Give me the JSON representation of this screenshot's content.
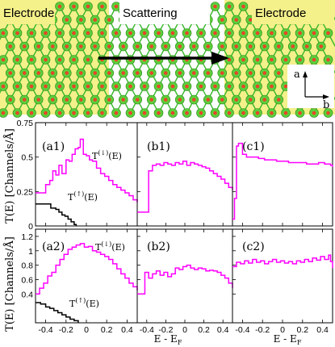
{
  "structure": {
    "left_label": "Electrode",
    "middle_label": "Scattering",
    "right_label": "Electrode",
    "axis_a": "a",
    "axis_b": "b",
    "colors": {
      "electrode_bg": "#f4f08a",
      "atom_large": "#5ccf3a",
      "atom_small": "#e8442a",
      "bond": "#3ab82f"
    }
  },
  "panels": {
    "ylabel_top": "T(E) [Channels/Å]",
    "ylabel_bottom": "T(E) [Channels/Å]",
    "xlabel": "E - E",
    "xlabel_sub": "F",
    "a1": "(a1)",
    "b1": "(b1)",
    "c1": "(c1)",
    "a2": "(a2)",
    "b2": "(b2)",
    "c2": "(c2)",
    "t_down": "T",
    "t_down_sup": "(↓)",
    "t_up": "T",
    "t_up_sup": "(↑)",
    "t_arg": "(E)"
  },
  "chart_data": [
    {
      "type": "line",
      "panel": "a1",
      "xlim": [
        -0.5,
        0.5
      ],
      "ylim": [
        0,
        0.75
      ],
      "yticks": [
        "0",
        "0.25",
        "0.5",
        "0.75"
      ],
      "series": [
        {
          "name": "T(↓)(E)",
          "color": "#ff00ff",
          "x": [
            -0.5,
            -0.44,
            -0.4,
            -0.36,
            -0.33,
            -0.3,
            -0.27,
            -0.24,
            -0.2,
            -0.17,
            -0.14,
            -0.11,
            -0.08,
            -0.06,
            -0.03,
            0.0,
            0.03,
            0.06,
            0.1,
            0.14,
            0.18,
            0.22,
            0.26,
            0.3,
            0.34,
            0.38,
            0.42,
            0.46,
            0.5
          ],
          "y": [
            0.24,
            0.24,
            0.3,
            0.33,
            0.4,
            0.37,
            0.44,
            0.38,
            0.48,
            0.47,
            0.52,
            0.56,
            0.57,
            0.63,
            0.52,
            0.51,
            0.48,
            0.47,
            0.42,
            0.38,
            0.36,
            0.33,
            0.3,
            0.28,
            0.26,
            0.24,
            0.22,
            0.19,
            0.17
          ]
        },
        {
          "name": "T(↑)(E)",
          "color": "#000000",
          "x": [
            -0.5,
            -0.4,
            -0.35,
            -0.3,
            -0.27,
            -0.24,
            -0.21,
            -0.18,
            -0.15,
            -0.12,
            -0.1
          ],
          "y": [
            0.16,
            0.16,
            0.13,
            0.12,
            0.1,
            0.08,
            0.07,
            0.05,
            0.03,
            0.01,
            0.0
          ]
        }
      ]
    },
    {
      "type": "line",
      "panel": "b1",
      "xlim": [
        -0.5,
        0.5
      ],
      "ylim": [
        0,
        0.75
      ],
      "series": [
        {
          "name": "",
          "color": "#ff00ff",
          "x": [
            -0.5,
            -0.4,
            -0.38,
            -0.34,
            -0.3,
            -0.26,
            -0.22,
            -0.18,
            -0.14,
            -0.1,
            -0.06,
            -0.02,
            0.02,
            0.06,
            0.1,
            0.14,
            0.18,
            0.22,
            0.26,
            0.3,
            0.34,
            0.38,
            0.42,
            0.46,
            0.5
          ],
          "y": [
            0.1,
            0.1,
            0.4,
            0.44,
            0.45,
            0.44,
            0.46,
            0.45,
            0.44,
            0.46,
            0.45,
            0.47,
            0.44,
            0.46,
            0.45,
            0.44,
            0.43,
            0.42,
            0.4,
            0.38,
            0.36,
            0.34,
            0.31,
            0.28,
            0.26
          ]
        }
      ]
    },
    {
      "type": "line",
      "panel": "c1",
      "xlim": [
        -0.5,
        0.5
      ],
      "ylim": [
        0,
        0.75
      ],
      "series": [
        {
          "name": "",
          "color": "#ff00ff",
          "x": [
            -0.5,
            -0.48,
            -0.46,
            -0.44,
            -0.4,
            -0.36,
            -0.3,
            -0.24,
            -0.18,
            -0.12,
            -0.06,
            0.0,
            0.06,
            0.12,
            0.18,
            0.24,
            0.3,
            0.36,
            0.42,
            0.48,
            0.5
          ],
          "y": [
            0.05,
            0.2,
            0.58,
            0.6,
            0.52,
            0.5,
            0.5,
            0.49,
            0.48,
            0.48,
            0.47,
            0.47,
            0.46,
            0.46,
            0.46,
            0.45,
            0.45,
            0.46,
            0.45,
            0.44,
            0.43
          ]
        }
      ]
    },
    {
      "type": "line",
      "panel": "a2",
      "xlim": [
        -0.5,
        0.5
      ],
      "ylim": [
        0,
        1.3
      ],
      "yticks": [
        "0.4",
        "0.6",
        "0.8",
        "1",
        "1.2"
      ],
      "series": [
        {
          "name": "T(↓)(E)",
          "color": "#ff00ff",
          "x": [
            -0.5,
            -0.46,
            -0.42,
            -0.38,
            -0.34,
            -0.3,
            -0.26,
            -0.22,
            -0.18,
            -0.14,
            -0.1,
            -0.06,
            -0.02,
            0.02,
            0.06,
            0.1,
            0.14,
            0.18,
            0.22,
            0.26,
            0.3,
            0.34,
            0.38,
            0.42,
            0.46,
            0.5
          ],
          "y": [
            0.4,
            0.48,
            0.55,
            0.65,
            0.7,
            0.8,
            0.88,
            0.95,
            1.02,
            1.05,
            1.08,
            1.1,
            1.05,
            1.06,
            1.0,
            0.98,
            0.95,
            0.92,
            0.88,
            0.82,
            0.75,
            0.68,
            0.62,
            0.55,
            0.5,
            0.45
          ]
        },
        {
          "name": "T(↑)(E)",
          "color": "#000000",
          "x": [
            -0.5,
            -0.45,
            -0.4,
            -0.36,
            -0.32,
            -0.28,
            -0.24,
            -0.2,
            -0.16,
            -0.12,
            -0.08
          ],
          "y": [
            0.28,
            0.26,
            0.22,
            0.2,
            0.17,
            0.14,
            0.11,
            0.08,
            0.05,
            0.03,
            0.0
          ]
        }
      ]
    },
    {
      "type": "line",
      "panel": "b2",
      "xlim": [
        -0.5,
        0.5
      ],
      "ylim": [
        0,
        1.3
      ],
      "series": [
        {
          "name": "",
          "color": "#ff00ff",
          "x": [
            -0.5,
            -0.44,
            -0.42,
            -0.38,
            -0.34,
            -0.3,
            -0.26,
            -0.22,
            -0.18,
            -0.14,
            -0.1,
            -0.06,
            -0.02,
            0.02,
            0.06,
            0.1,
            0.14,
            0.18,
            0.22,
            0.26,
            0.3,
            0.34,
            0.38,
            0.42,
            0.46,
            0.5
          ],
          "y": [
            0.4,
            0.4,
            0.7,
            0.62,
            0.68,
            0.72,
            0.66,
            0.7,
            0.64,
            0.68,
            0.76,
            0.74,
            0.78,
            0.8,
            0.76,
            0.74,
            0.76,
            0.75,
            0.72,
            0.73,
            0.72,
            0.7,
            0.66,
            0.62,
            0.55,
            0.48
          ]
        }
      ]
    },
    {
      "type": "line",
      "panel": "c2",
      "xlim": [
        -0.5,
        0.5
      ],
      "ylim": [
        0,
        1.3
      ],
      "series": [
        {
          "name": "",
          "color": "#ff00ff",
          "x": [
            -0.5,
            -0.46,
            -0.42,
            -0.38,
            -0.34,
            -0.3,
            -0.26,
            -0.22,
            -0.18,
            -0.14,
            -0.1,
            -0.06,
            -0.02,
            0.02,
            0.06,
            0.1,
            0.14,
            0.18,
            0.22,
            0.26,
            0.3,
            0.34,
            0.38,
            0.42,
            0.46,
            0.48,
            0.5
          ],
          "y": [
            0.78,
            0.84,
            0.82,
            0.86,
            0.83,
            0.88,
            0.84,
            0.86,
            0.82,
            0.85,
            0.88,
            0.84,
            0.86,
            0.83,
            0.85,
            0.82,
            0.86,
            0.84,
            0.88,
            0.85,
            0.9,
            0.87,
            0.92,
            0.88,
            0.94,
            0.85,
            0.76
          ]
        }
      ]
    }
  ],
  "xticks": [
    "-0.4",
    "-0.2",
    "0",
    "0.2",
    "0.4"
  ]
}
